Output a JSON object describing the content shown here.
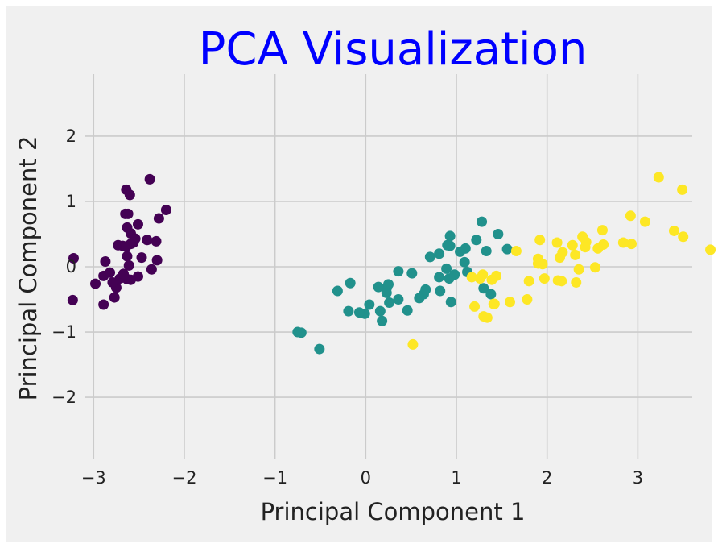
{
  "chart_data": {
    "type": "scatter",
    "title": "PCA Visualization",
    "title_color": "#0000ff",
    "xlabel": "Principal Component 1",
    "ylabel": "Principal Component 2",
    "xlim": [
      -3.1,
      3.6
    ],
    "ylim": [
      -2.95,
      2.95
    ],
    "xticks": [
      -3,
      -2,
      -1,
      0,
      1,
      2,
      3
    ],
    "yticks": [
      -2,
      -1,
      0,
      1,
      2
    ],
    "grid": true,
    "background_color": "#f0f0f0",
    "series": [
      {
        "color": "#440154",
        "points": [
          [
            -2.68,
            0.32
          ],
          [
            -2.71,
            -0.18
          ],
          [
            -2.89,
            -0.14
          ],
          [
            -2.75,
            -0.32
          ],
          [
            -2.73,
            0.33
          ],
          [
            -2.28,
            0.74
          ],
          [
            -2.82,
            -0.09
          ],
          [
            -2.63,
            0.16
          ],
          [
            -2.89,
            -0.58
          ],
          [
            -2.67,
            -0.11
          ],
          [
            -2.51,
            0.65
          ],
          [
            -2.61,
            0.02
          ],
          [
            -2.79,
            -0.24
          ],
          [
            -3.23,
            -0.51
          ],
          [
            -2.64,
            1.18
          ],
          [
            -2.38,
            1.34
          ],
          [
            -2.62,
            0.81
          ],
          [
            -2.65,
            0.31
          ],
          [
            -2.2,
            0.87
          ],
          [
            -2.59,
            0.51
          ],
          [
            -2.31,
            0.39
          ],
          [
            -2.54,
            0.43
          ],
          [
            -3.22,
            0.13
          ],
          [
            -2.3,
            0.1
          ],
          [
            -2.36,
            -0.04
          ],
          [
            -2.51,
            -0.15
          ],
          [
            -2.47,
            0.14
          ],
          [
            -2.56,
            0.37
          ],
          [
            -2.64,
            0.31
          ],
          [
            -2.63,
            -0.19
          ],
          [
            -2.59,
            -0.2
          ],
          [
            -2.41,
            0.41
          ],
          [
            -2.65,
            0.81
          ],
          [
            -2.6,
            1.1
          ],
          [
            -2.67,
            -0.11
          ],
          [
            -2.87,
            0.08
          ],
          [
            -2.63,
            0.6
          ],
          [
            -2.98,
            -0.26
          ],
          [
            -2.59,
            0.35
          ],
          [
            -2.77,
            -0.47
          ]
        ]
      },
      {
        "color": "#21918c",
        "points": [
          [
            1.28,
            0.69
          ],
          [
            0.93,
            0.32
          ],
          [
            1.46,
            0.5
          ],
          [
            0.18,
            -0.83
          ],
          [
            1.09,
            0.07
          ],
          [
            0.64,
            -0.42
          ],
          [
            1.1,
            0.28
          ],
          [
            -0.75,
            -1.0
          ],
          [
            1.04,
            0.23
          ],
          [
            -0.01,
            -0.72
          ],
          [
            -0.51,
            -1.26
          ],
          [
            0.51,
            -0.1
          ],
          [
            0.26,
            -0.55
          ],
          [
            0.98,
            -0.12
          ],
          [
            -0.17,
            -0.25
          ],
          [
            0.93,
            0.47
          ],
          [
            0.66,
            -0.35
          ],
          [
            0.23,
            -0.33
          ],
          [
            0.94,
            -0.54
          ],
          [
            0.04,
            -0.58
          ],
          [
            1.12,
            -0.08
          ],
          [
            0.36,
            -0.07
          ],
          [
            1.3,
            -0.33
          ],
          [
            0.92,
            -0.18
          ],
          [
            0.71,
            0.15
          ],
          [
            0.9,
            0.33
          ],
          [
            1.33,
            0.24
          ],
          [
            1.56,
            0.27
          ],
          [
            0.81,
            -0.16
          ],
          [
            -0.31,
            -0.37
          ],
          [
            -0.07,
            -0.7
          ],
          [
            -0.19,
            -0.68
          ],
          [
            0.14,
            -0.31
          ],
          [
            1.38,
            -0.42
          ],
          [
            0.59,
            -0.48
          ],
          [
            0.81,
            0.2
          ],
          [
            1.22,
            0.41
          ],
          [
            0.82,
            -0.37
          ],
          [
            0.25,
            -0.27
          ],
          [
            0.16,
            -0.68
          ],
          [
            0.46,
            -0.67
          ],
          [
            0.89,
            -0.03
          ],
          [
            0.23,
            -0.4
          ],
          [
            -0.71,
            -1.01
          ],
          [
            0.36,
            -0.5
          ]
        ]
      },
      {
        "color": "#fde725",
        "points": [
          [
            2.53,
            -0.01
          ],
          [
            1.41,
            -0.57
          ],
          [
            2.62,
            0.34
          ],
          [
            1.97,
            -0.18
          ],
          [
            2.35,
            -0.04
          ],
          [
            3.4,
            0.55
          ],
          [
            0.52,
            -1.19
          ],
          [
            2.93,
            0.35
          ],
          [
            2.32,
            -0.24
          ],
          [
            2.92,
            0.78
          ],
          [
            1.66,
            0.24
          ],
          [
            1.8,
            -0.22
          ],
          [
            2.17,
            0.22
          ],
          [
            1.34,
            -0.78
          ],
          [
            1.59,
            -0.54
          ],
          [
            1.9,
            0.12
          ],
          [
            1.95,
            0.04
          ],
          [
            3.49,
            1.18
          ],
          [
            3.8,
            0.26
          ],
          [
            1.3,
            -0.76
          ],
          [
            2.43,
            0.38
          ],
          [
            1.2,
            -0.61
          ],
          [
            3.5,
            0.46
          ],
          [
            1.39,
            -0.2
          ],
          [
            2.28,
            0.33
          ],
          [
            2.61,
            0.56
          ],
          [
            1.26,
            -0.18
          ],
          [
            1.29,
            -0.12
          ],
          [
            2.12,
            -0.21
          ],
          [
            2.39,
            0.46
          ],
          [
            2.84,
            0.37
          ],
          [
            3.23,
            1.37
          ],
          [
            2.16,
            -0.22
          ],
          [
            1.44,
            -0.14
          ],
          [
            1.78,
            -0.5
          ],
          [
            3.08,
            0.69
          ],
          [
            2.14,
            0.14
          ],
          [
            1.9,
            0.05
          ],
          [
            1.17,
            -0.16
          ],
          [
            2.11,
            0.37
          ],
          [
            2.31,
            0.18
          ],
          [
            1.92,
            0.41
          ],
          [
            1.42,
            -0.57
          ],
          [
            2.56,
            0.28
          ],
          [
            2.42,
            0.3
          ]
        ]
      }
    ]
  }
}
